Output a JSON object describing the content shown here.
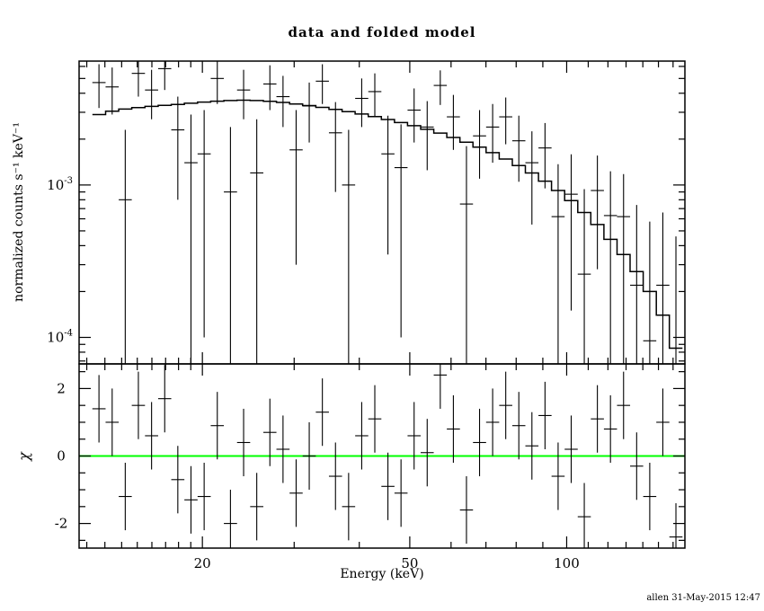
{
  "footer": "allen 31-May-2015 12:47",
  "chart_data": [
    {
      "type": "line+scatter",
      "panel": "folded-spectrum",
      "title": "data and folded model",
      "x_label": "Energy (keV)",
      "y_label": "normalized counts s⁻¹ keV⁻¹",
      "x_scale": "log",
      "y_scale": "log",
      "xlim": [
        11.6,
        168.6
      ],
      "ylim": [
        6.7e-05,
        0.0065
      ],
      "x_major_ticks": [
        20,
        50,
        100
      ],
      "x_minor_ticks": [
        12,
        13,
        14,
        15,
        16,
        17,
        18,
        19,
        30,
        40,
        60,
        70,
        80,
        90,
        110,
        120,
        130,
        140,
        150,
        160
      ],
      "y_major_ticks": [
        {
          "value": 0.001,
          "base": "10",
          "exp": "-3"
        },
        {
          "value": 0.0001,
          "base": "10",
          "exp": "-4"
        }
      ],
      "y_minor_ticks": [
        7e-05,
        8e-05,
        9e-05,
        0.0002,
        0.0003,
        0.0004,
        0.0005,
        0.0006,
        0.0007,
        0.0008,
        0.0009,
        0.002,
        0.003,
        0.004,
        0.005,
        0.006
      ],
      "bin_edges": [
        12.3,
        13.04,
        13.82,
        14.64,
        15.52,
        16.45,
        17.43,
        18.47,
        19.58,
        20.75,
        21.99,
        23.31,
        24.7,
        26.18,
        27.74,
        29.4,
        31.15,
        33.01,
        34.98,
        37.07,
        39.28,
        41.62,
        44.1,
        46.73,
        49.51,
        52.46,
        55.58,
        58.89,
        62.4,
        66.11,
        70.05,
        74.22,
        78.64,
        83.32,
        88.28,
        93.54,
        99.11,
        105.01,
        111.26,
        117.89,
        124.91,
        132.35,
        140.23,
        148.58,
        157.43,
        166.8
      ],
      "model": [
        0.0029,
        0.00305,
        0.00315,
        0.00322,
        0.00328,
        0.00333,
        0.00338,
        0.00344,
        0.0035,
        0.00355,
        0.00358,
        0.0036,
        0.00358,
        0.00354,
        0.00348,
        0.0034,
        0.00332,
        0.00323,
        0.00313,
        0.00303,
        0.00292,
        0.00281,
        0.00269,
        0.00257,
        0.00245,
        0.00232,
        0.00219,
        0.00205,
        0.00191,
        0.00177,
        0.00163,
        0.00148,
        0.00134,
        0.0012,
        0.00106,
        0.00092,
        0.00079,
        0.00066,
        0.00055,
        0.00044,
        0.00035,
        0.00027,
        0.0002,
        0.00014,
        8.5e-05
      ],
      "data": [
        0.0047,
        0.0044,
        0.0008,
        0.0054,
        0.0042,
        0.0058,
        0.0023,
        0.0014,
        0.0016,
        0.005,
        0.0009,
        0.0042,
        0.0012,
        0.0046,
        0.0038,
        0.0017,
        0.0033,
        0.0048,
        0.0022,
        0.001,
        0.0037,
        0.0041,
        0.0016,
        0.0013,
        0.0031,
        0.0024,
        0.0045,
        0.0028,
        0.00075,
        0.0021,
        0.0024,
        0.0028,
        0.00195,
        0.0014,
        0.00175,
        0.00062,
        0.00087,
        0.00026,
        0.00092,
        0.00063,
        0.00062,
        0.00022,
        9.5e-05,
        0.00022,
        4e-05
      ],
      "data_err": [
        0.0015,
        0.0015,
        0.0015,
        0.0016,
        0.0015,
        0.0016,
        0.0015,
        0.0015,
        0.0015,
        0.0016,
        0.0015,
        0.0015,
        0.0015,
        0.0015,
        0.0014,
        0.0014,
        0.0014,
        0.0014,
        0.0013,
        0.0013,
        0.0013,
        0.0013,
        0.00125,
        0.0012,
        0.0012,
        0.00115,
        0.00115,
        0.0011,
        0.00105,
        0.001,
        0.001,
        0.00095,
        0.0009,
        0.00085,
        0.0008,
        0.00075,
        0.00072,
        0.00068,
        0.00064,
        0.0006,
        0.00056,
        0.00052,
        0.00048,
        0.00044,
        0.00042
      ]
    },
    {
      "type": "scatter",
      "panel": "residuals",
      "y_label": "χ",
      "y_scale": "linear",
      "ylim": [
        -2.73,
        2.73
      ],
      "y_major_ticks": [
        -2,
        0,
        2
      ],
      "y_minor_ticks": [
        -2.5,
        -1.5,
        -1,
        -0.5,
        0.5,
        1,
        1.5,
        2.5
      ],
      "chi": [
        1.4,
        1.0,
        -1.2,
        1.5,
        0.6,
        1.7,
        -0.7,
        -1.3,
        -1.2,
        0.9,
        -2.0,
        0.4,
        -1.5,
        0.7,
        0.2,
        -1.1,
        0.0,
        1.3,
        -0.6,
        -1.5,
        0.6,
        1.1,
        -0.9,
        -1.1,
        0.6,
        0.1,
        2.4,
        0.8,
        -1.6,
        0.4,
        1.0,
        1.5,
        0.9,
        0.3,
        1.2,
        -0.6,
        0.2,
        -1.8,
        1.1,
        0.8,
        1.5,
        -0.3,
        -1.2,
        1.0,
        -2.4
      ],
      "chi_err": 1.0,
      "zero_line_color": "#00ff00"
    }
  ]
}
